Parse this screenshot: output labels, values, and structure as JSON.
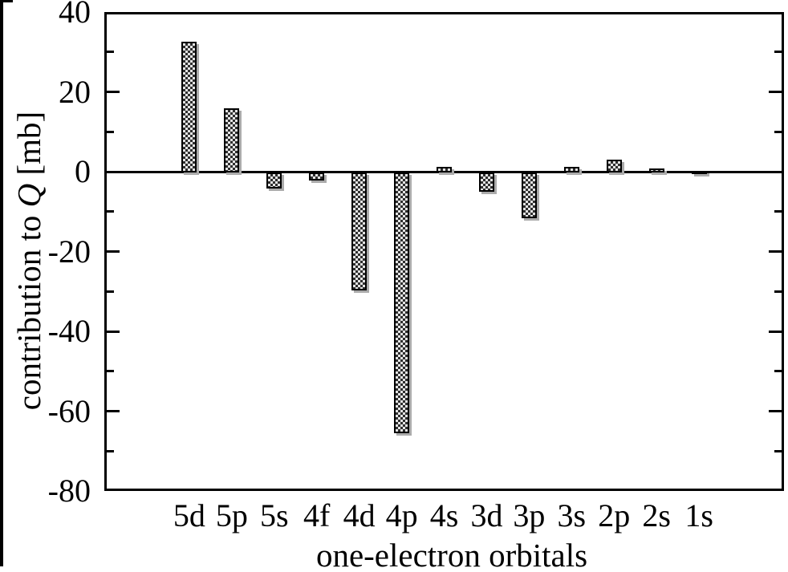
{
  "figure": {
    "background": "#ffffff",
    "frame_color": "#000000"
  },
  "chart_data": {
    "type": "bar",
    "title": "",
    "xlabel": "one-electron orbitals",
    "ylabel": "contribution to Q [mb]",
    "ylabel_prefix": "contribution to ",
    "ylabel_symbol": "Q",
    "ylabel_suffix": " [mb]",
    "categories": [
      "5d",
      "5p",
      "5s",
      "4f",
      "4d",
      "4p",
      "4s",
      "3d",
      "3p",
      "3s",
      "2p",
      "2s",
      "1s"
    ],
    "values": [
      32.7,
      16.0,
      -4.0,
      -2.1,
      -29.6,
      -65.3,
      1.5,
      -4.8,
      -11.4,
      1.4,
      3.2,
      1.0,
      0.2
    ],
    "ylim": [
      -80,
      40
    ],
    "ytick_values": [
      40,
      20,
      0,
      -20,
      -40,
      -60,
      -80
    ],
    "ytick_labels": [
      "40",
      "20",
      "0",
      "-20",
      "-40",
      "-60",
      "-80"
    ],
    "ytick_minor_step": 10,
    "grid": false,
    "legend_position": "none",
    "bar_border_color": "#000000",
    "bar_pattern_dark": "#2e2e2e",
    "bar_pattern_light": "#e3e3e3",
    "bar_shadow_color": "#ababab",
    "axis_color": "#000000"
  }
}
